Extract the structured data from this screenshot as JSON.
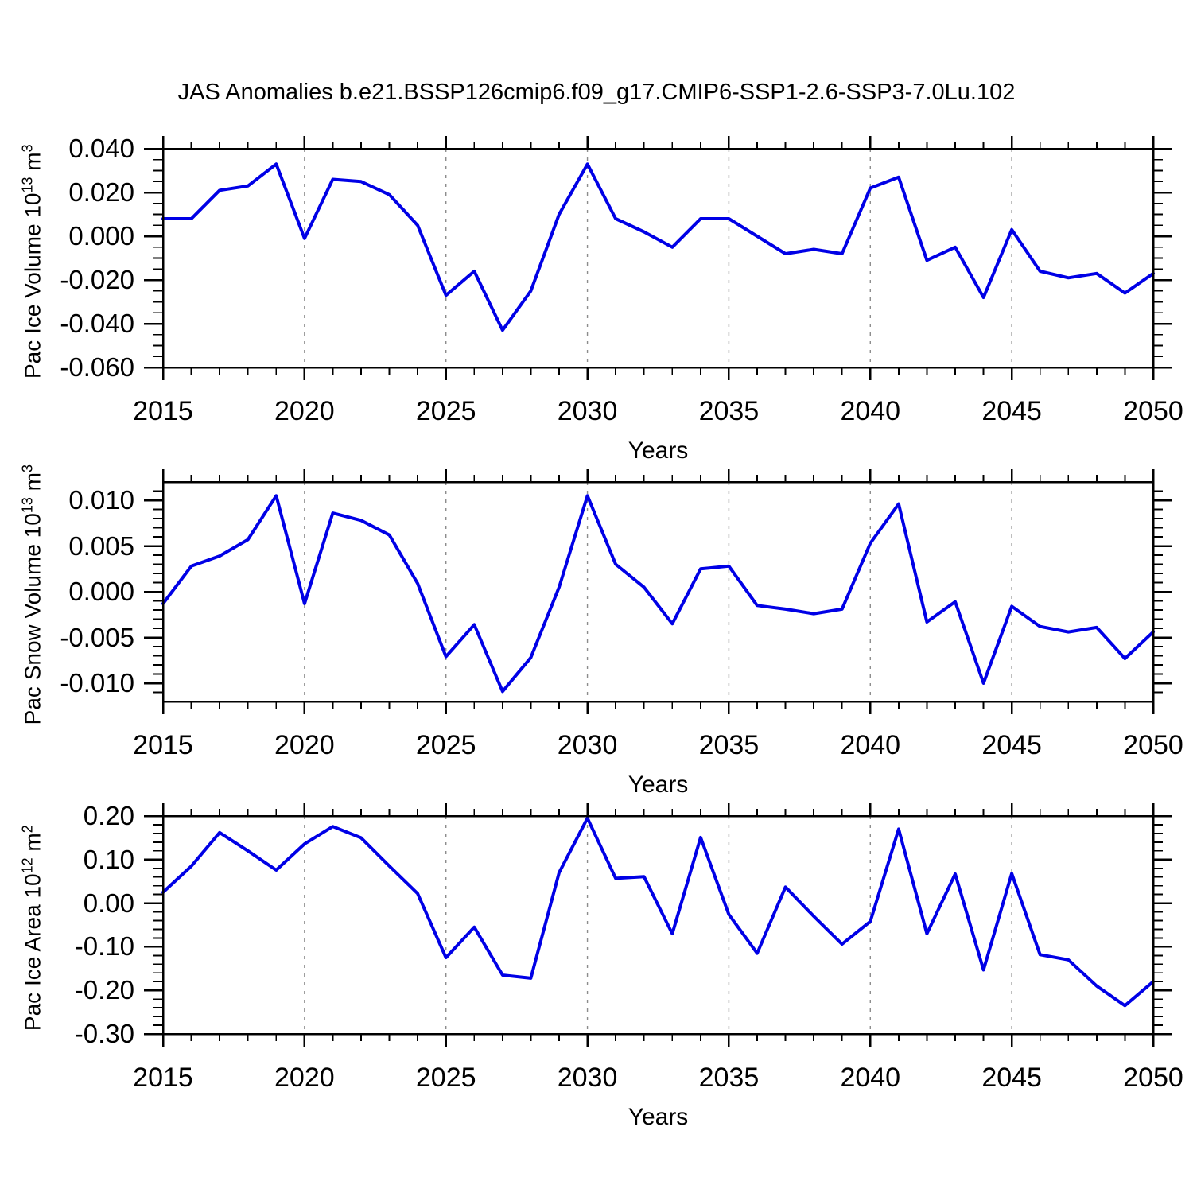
{
  "title": "JAS Anomalies b.e21.BSSP126cmip6.f09_g17.CMIP6-SSP1-2.6-SSP3-7.0Lu.102",
  "colors": {
    "line": "#0000e6",
    "frame": "#000000",
    "grid": "#8c8c8c",
    "text": "#000000",
    "background": "#ffffff"
  },
  "x_axis": {
    "label": "Years",
    "min": 2015,
    "max": 2050,
    "major_tick_values": [
      2015,
      2020,
      2025,
      2030,
      2035,
      2040,
      2045,
      2050
    ],
    "tick_labels": [
      "2015",
      "2020",
      "2025",
      "2030",
      "2035",
      "2040",
      "2045",
      "2050"
    ],
    "minor_step": 1,
    "grid_years": [
      2020,
      2025,
      2030,
      2035,
      2040,
      2045
    ]
  },
  "chart_data": [
    {
      "type": "line",
      "ylabel": "Pac Ice Volume 10^{13} m^{3}",
      "xlabel": "Years",
      "ylim": [
        -0.06,
        0.04
      ],
      "ytick_values": [
        0.04,
        0.02,
        0.0,
        -0.02,
        -0.04,
        -0.06
      ],
      "ytick_labels": [
        "0.040",
        "0.020",
        "0.000",
        "-0.020",
        "-0.040",
        "-0.060"
      ],
      "y_minor_step": 0.005,
      "grid": "vertical-dashed",
      "legend": "none",
      "x": [
        2015,
        2016,
        2017,
        2018,
        2019,
        2020,
        2021,
        2022,
        2023,
        2024,
        2025,
        2026,
        2027,
        2028,
        2029,
        2030,
        2031,
        2032,
        2033,
        2034,
        2035,
        2036,
        2037,
        2038,
        2039,
        2040,
        2041,
        2042,
        2043,
        2044,
        2045,
        2046,
        2047,
        2048,
        2049,
        2050
      ],
      "values": [
        0.008,
        0.008,
        0.021,
        0.023,
        0.033,
        -0.001,
        0.026,
        0.025,
        0.019,
        0.005,
        -0.027,
        -0.016,
        -0.043,
        -0.025,
        0.01,
        0.033,
        0.008,
        0.002,
        -0.005,
        0.008,
        0.008,
        0.0,
        -0.008,
        -0.006,
        -0.008,
        0.022,
        0.027,
        -0.011,
        -0.005,
        -0.028,
        0.003,
        -0.016,
        -0.019,
        -0.017,
        -0.026,
        -0.017
      ]
    },
    {
      "type": "line",
      "ylabel": "Pac Snow Volume 10^{13} m^{3}",
      "xlabel": "Years",
      "ylim": [
        -0.012,
        0.012
      ],
      "ytick_values": [
        0.01,
        0.005,
        0.0,
        -0.005,
        -0.01
      ],
      "ytick_labels": [
        "0.010",
        "0.005",
        "0.000",
        "-0.005",
        "-0.010"
      ],
      "y_minor_step": 0.001,
      "grid": "vertical-dashed",
      "legend": "none",
      "x": [
        2015,
        2016,
        2017,
        2018,
        2019,
        2020,
        2021,
        2022,
        2023,
        2024,
        2025,
        2026,
        2027,
        2028,
        2029,
        2030,
        2031,
        2032,
        2033,
        2034,
        2035,
        2036,
        2037,
        2038,
        2039,
        2040,
        2041,
        2042,
        2043,
        2044,
        2045,
        2046,
        2047,
        2048,
        2049,
        2050
      ],
      "values": [
        -0.0013,
        0.0028,
        0.0039,
        0.0057,
        0.0105,
        -0.0013,
        0.0086,
        0.0078,
        0.0062,
        0.0009,
        -0.0071,
        -0.0036,
        -0.0109,
        -0.0072,
        0.0005,
        0.0105,
        0.003,
        0.0005,
        -0.0035,
        0.0025,
        0.0028,
        -0.0015,
        -0.0019,
        -0.0024,
        -0.0019,
        0.0053,
        0.0096,
        -0.0033,
        -0.0011,
        -0.01,
        -0.0016,
        -0.0038,
        -0.0044,
        -0.0039,
        -0.0073,
        -0.0044
      ]
    },
    {
      "type": "line",
      "ylabel": "Pac Ice Area 10^{12} m^{2}",
      "xlabel": "Years",
      "ylim": [
        -0.3,
        0.2
      ],
      "ytick_values": [
        0.2,
        0.1,
        0.0,
        -0.1,
        -0.2,
        -0.3
      ],
      "ytick_labels": [
        "0.20",
        "0.10",
        "0.00",
        "-0.10",
        "-0.20",
        "-0.30"
      ],
      "y_minor_step": 0.02,
      "grid": "vertical-dashed",
      "legend": "none",
      "x": [
        2015,
        2016,
        2017,
        2018,
        2019,
        2020,
        2021,
        2022,
        2023,
        2024,
        2025,
        2026,
        2027,
        2028,
        2029,
        2030,
        2031,
        2032,
        2033,
        2034,
        2035,
        2036,
        2037,
        2038,
        2039,
        2040,
        2041,
        2042,
        2043,
        2044,
        2045,
        2046,
        2047,
        2048,
        2049,
        2050
      ],
      "values": [
        0.025,
        0.085,
        0.162,
        0.12,
        0.076,
        0.136,
        0.176,
        0.15,
        0.085,
        0.022,
        -0.125,
        -0.055,
        -0.165,
        -0.172,
        0.07,
        0.195,
        0.057,
        0.061,
        -0.07,
        0.151,
        -0.026,
        -0.115,
        0.037,
        -0.03,
        -0.094,
        -0.042,
        0.17,
        -0.07,
        0.067,
        -0.153,
        0.068,
        -0.118,
        -0.13,
        -0.19,
        -0.235,
        -0.18
      ]
    }
  ]
}
